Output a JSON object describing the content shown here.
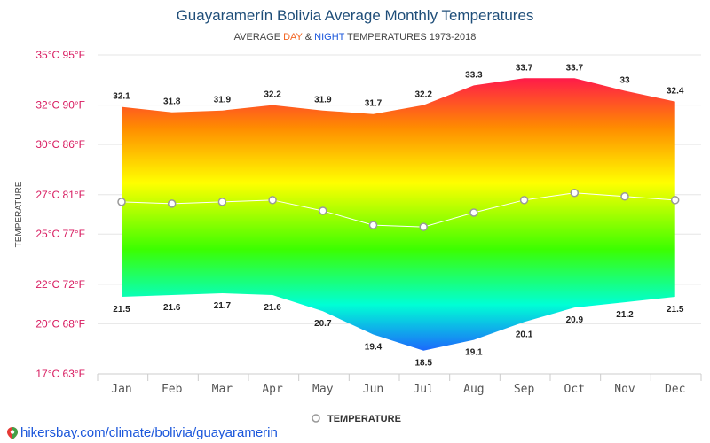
{
  "chart_data": {
    "type": "area",
    "title": "Guayaramerín Bolivia Average Monthly Temperatures",
    "subtitle": {
      "prefix": "AVERAGE ",
      "day": "DAY",
      "mid": " & ",
      "night": "NIGHT",
      "suffix": " TEMPERATURES 1973-2018"
    },
    "ylabel": "TEMPERATURE",
    "categories": [
      "Jan",
      "Feb",
      "Mar",
      "Apr",
      "May",
      "Jun",
      "Jul",
      "Aug",
      "Sep",
      "Oct",
      "Nov",
      "Dec"
    ],
    "series": [
      {
        "name": "",
        "values": [
          32.1,
          31.8,
          31.9,
          32.2,
          31.9,
          31.7,
          32.2,
          33.3,
          33.7,
          33.7,
          33,
          32.4
        ]
      },
      {
        "name": "",
        "values": [
          21.5,
          21.6,
          21.7,
          21.6,
          20.7,
          19.4,
          18.5,
          19.1,
          20.1,
          20.9,
          21.2,
          21.5
        ]
      },
      {
        "name": "TEMPERATURE",
        "values": [
          26.8,
          26.7,
          26.8,
          26.9,
          26.3,
          25.5,
          25.4,
          26.2,
          26.9,
          27.3,
          27.1,
          26.9
        ]
      }
    ],
    "yticks": [
      {
        "value": 17.2,
        "label": "17°C 63°F"
      },
      {
        "value": 20,
        "label": "20°C 68°F"
      },
      {
        "value": 22.2,
        "label": "22°C 72°F"
      },
      {
        "value": 25,
        "label": "25°C 77°F"
      },
      {
        "value": 27.2,
        "label": "27°C 81°F"
      },
      {
        "value": 30,
        "label": "30°C 86°F"
      },
      {
        "value": 32.2,
        "label": "32°C 90°F"
      },
      {
        "value": 35,
        "label": "35°C 95°F"
      }
    ],
    "ylim": [
      17.2,
      35
    ],
    "grid": true,
    "legend": {
      "position": "bottom",
      "label": "TEMPERATURE"
    },
    "colors": {
      "gradient_top": "#ff1a4a",
      "gradient_orange": "#ff8c00",
      "gradient_yellow": "#ffff00",
      "gradient_green": "#3cff00",
      "gradient_cyan": "#00ffd5",
      "gradient_blue": "#1e5cff",
      "avg_line": "#ffffff",
      "avg_marker_stroke": "#999999"
    }
  },
  "footer": {
    "text": "hikersbay.com/climate/bolivia/guayaramerin"
  }
}
